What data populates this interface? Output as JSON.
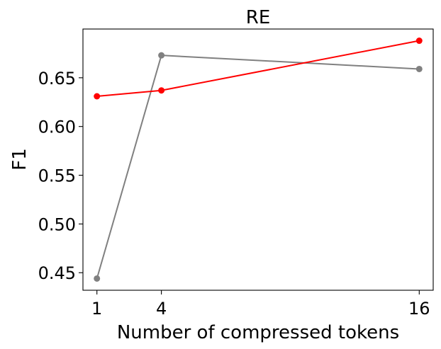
{
  "chart_data": {
    "type": "line",
    "title": "RE",
    "xlabel": "Number of compressed tokens",
    "ylabel": "F1",
    "x": [
      1,
      4,
      16
    ],
    "xticks": [
      1,
      4,
      16
    ],
    "xtick_labels": [
      "1",
      "4",
      "16"
    ],
    "yticks": [
      0.45,
      0.5,
      0.55,
      0.6,
      0.65
    ],
    "ytick_labels": [
      "0.45",
      "0.50",
      "0.55",
      "0.60",
      "0.65"
    ],
    "xlim": [
      0.35,
      16.65
    ],
    "ylim": [
      0.432,
      0.7
    ],
    "grid": false,
    "series": [
      {
        "color": "#808080",
        "values": [
          0.444,
          0.673,
          0.659
        ]
      },
      {
        "color": "#ff0000",
        "values": [
          0.631,
          0.637,
          0.688
        ]
      }
    ]
  }
}
